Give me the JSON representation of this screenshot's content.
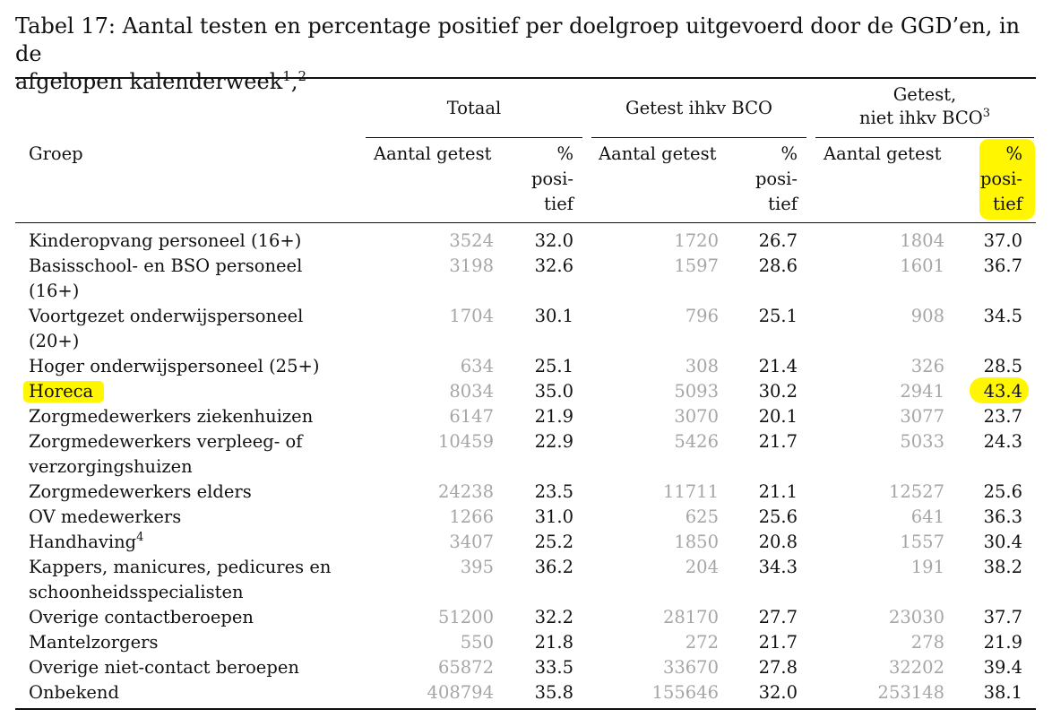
{
  "caption": {
    "line1": "Tabel 17: Aantal testen en percentage positief per doelgroep uitgevoerd door de GGD’en, in de",
    "line2": "afgelopen kalenderweek",
    "sup1": "1",
    "sep": ",",
    "sup2": "2"
  },
  "header": {
    "groep": "Groep",
    "totaal": "Totaal",
    "bco": "Getest ihkv BCO",
    "niet_bco_l1": "Getest,",
    "niet_bco_l2": "niet ihkv BCO",
    "niet_bco_sup": "3",
    "aantal": "Aantal getest",
    "pct_l1": "%",
    "pct_l2": "posi-",
    "pct_l3": "tief"
  },
  "rows": [
    {
      "name": [
        "Kinderopvang personeel (16+)"
      ],
      "t_n": "3524",
      "t_p": "32.0",
      "b_n": "1720",
      "b_p": "26.7",
      "n_n": "1804",
      "n_p": "37.0"
    },
    {
      "name": [
        "Basisschool- en BSO personeel",
        "(16+)"
      ],
      "t_n": "3198",
      "t_p": "32.6",
      "b_n": "1597",
      "b_p": "28.6",
      "n_n": "1601",
      "n_p": "36.7"
    },
    {
      "name": [
        "Voortgezet onderwijspersoneel",
        "(20+)"
      ],
      "t_n": "1704",
      "t_p": "30.1",
      "b_n": "796",
      "b_p": "25.1",
      "n_n": "908",
      "n_p": "34.5"
    },
    {
      "name": [
        "Hoger onderwijspersoneel (25+)"
      ],
      "t_n": "634",
      "t_p": "25.1",
      "b_n": "308",
      "b_p": "21.4",
      "n_n": "326",
      "n_p": "28.5"
    },
    {
      "name": [
        "Horeca"
      ],
      "t_n": "8034",
      "t_p": "35.0",
      "b_n": "5093",
      "b_p": "30.2",
      "n_n": "2941",
      "n_p": "43.4"
    },
    {
      "name": [
        "Zorgmedewerkers ziekenhuizen"
      ],
      "t_n": "6147",
      "t_p": "21.9",
      "b_n": "3070",
      "b_p": "20.1",
      "n_n": "3077",
      "n_p": "23.7"
    },
    {
      "name": [
        "Zorgmedewerkers verpleeg- of",
        "verzorgingshuizen"
      ],
      "t_n": "10459",
      "t_p": "22.9",
      "b_n": "5426",
      "b_p": "21.7",
      "n_n": "5033",
      "n_p": "24.3"
    },
    {
      "name": [
        "Zorgmedewerkers elders"
      ],
      "t_n": "24238",
      "t_p": "23.5",
      "b_n": "11711",
      "b_p": "21.1",
      "n_n": "12527",
      "n_p": "25.6"
    },
    {
      "name": [
        "OV medewerkers"
      ],
      "t_n": "1266",
      "t_p": "31.0",
      "b_n": "625",
      "b_p": "25.6",
      "n_n": "641",
      "n_p": "36.3"
    },
    {
      "name": [
        "Handhaving"
      ],
      "sup": "4",
      "t_n": "3407",
      "t_p": "25.2",
      "b_n": "1850",
      "b_p": "20.8",
      "n_n": "1557",
      "n_p": "30.4"
    },
    {
      "name": [
        "Kappers, manicures, pedicures en",
        "schoonheidsspecialisten"
      ],
      "t_n": "395",
      "t_p": "36.2",
      "b_n": "204",
      "b_p": "34.3",
      "n_n": "191",
      "n_p": "38.2"
    },
    {
      "name": [
        "Overige contactberoepen"
      ],
      "t_n": "51200",
      "t_p": "32.2",
      "b_n": "28170",
      "b_p": "27.7",
      "n_n": "23030",
      "n_p": "37.7"
    },
    {
      "name": [
        "Mantelzorgers"
      ],
      "t_n": "550",
      "t_p": "21.8",
      "b_n": "272",
      "b_p": "21.7",
      "n_n": "278",
      "n_p": "21.9"
    },
    {
      "name": [
        "Overige niet-contact beroepen"
      ],
      "t_n": "65872",
      "t_p": "33.5",
      "b_n": "33670",
      "b_p": "27.8",
      "n_n": "32202",
      "n_p": "39.4"
    },
    {
      "name": [
        "Onbekend"
      ],
      "t_n": "408794",
      "t_p": "35.8",
      "b_n": "155646",
      "b_p": "32.0",
      "n_n": "253148",
      "n_p": "38.1"
    }
  ],
  "highlight_color": "#fff200"
}
